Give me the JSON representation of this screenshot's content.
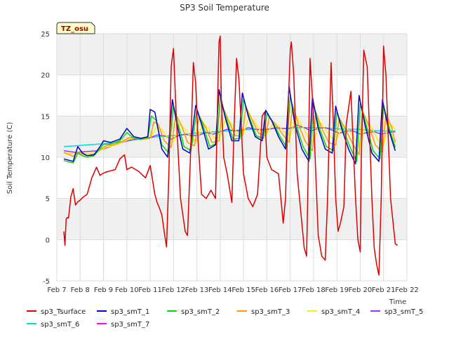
{
  "chart_data": {
    "type": "line",
    "title": "SP3 Soil Temperature",
    "xlabel": "Time",
    "ylabel": "Soil Temperature (C)",
    "badge": "TZ_osu",
    "xlim": [
      7,
      22
    ],
    "ylim": [
      -5,
      25
    ],
    "x_ticks": [
      {
        "value": 7,
        "label": "Feb 7"
      },
      {
        "value": 8,
        "label": "Feb 8"
      },
      {
        "value": 9,
        "label": "Feb 9"
      },
      {
        "value": 10,
        "label": "Feb 10"
      },
      {
        "value": 11,
        "label": "Feb 11"
      },
      {
        "value": 12,
        "label": "Feb 12"
      },
      {
        "value": 13,
        "label": "Feb 13"
      },
      {
        "value": 14,
        "label": "Feb 14"
      },
      {
        "value": 15,
        "label": "Feb 15"
      },
      {
        "value": 16,
        "label": "Feb 16"
      },
      {
        "value": 17,
        "label": "Feb 17"
      },
      {
        "value": 18,
        "label": "Feb 18"
      },
      {
        "value": 19,
        "label": "Feb 19"
      },
      {
        "value": 20,
        "label": "Feb 20"
      },
      {
        "value": 21,
        "label": "Feb 21"
      },
      {
        "value": 22,
        "label": "Feb 22"
      }
    ],
    "y_ticks": [
      -5,
      0,
      5,
      10,
      15,
      20,
      25
    ],
    "grid": true,
    "legend_position": "bottom",
    "series": [
      {
        "name": "sp3_Tsurface",
        "color": "#dd0000",
        "x": [
          7.3,
          7.35,
          7.4,
          7.45,
          7.5,
          7.6,
          7.7,
          7.8,
          7.9,
          8.0,
          8.1,
          8.3,
          8.5,
          8.7,
          8.85,
          8.95,
          9.1,
          9.5,
          9.7,
          9.9,
          10.0,
          10.2,
          10.5,
          10.8,
          11.0,
          11.2,
          11.3,
          11.4,
          11.5,
          11.6,
          11.7,
          11.8,
          11.9,
          12.0,
          12.1,
          12.3,
          12.5,
          12.6,
          12.75,
          12.85,
          12.95,
          13.05,
          13.2,
          13.4,
          13.6,
          13.8,
          13.9,
          13.95,
          14.0,
          14.05,
          14.15,
          14.3,
          14.5,
          14.6,
          14.7,
          14.8,
          14.9,
          15.0,
          15.2,
          15.4,
          15.6,
          15.7,
          15.8,
          15.9,
          16.0,
          16.2,
          16.5,
          16.7,
          16.8,
          16.9,
          17.0,
          17.05,
          17.15,
          17.3,
          17.5,
          17.6,
          17.7,
          17.75,
          17.85,
          18.0,
          18.2,
          18.35,
          18.5,
          18.6,
          18.75,
          18.85,
          18.95,
          19.05,
          19.15,
          19.3,
          19.4,
          19.6,
          19.8,
          19.9,
          20.0,
          20.05,
          20.15,
          20.3,
          20.5,
          20.6,
          20.7,
          20.8,
          20.9,
          21.0,
          21.1,
          21.3,
          21.5,
          21.6
        ],
        "y": [
          1.0,
          -0.7,
          2.5,
          2.7,
          2.6,
          5.2,
          6.2,
          4.2,
          4.6,
          4.8,
          5.1,
          5.5,
          7.5,
          8.8,
          7.8,
          8.0,
          8.2,
          8.5,
          9.8,
          10.3,
          8.5,
          8.8,
          8.3,
          7.5,
          9.0,
          5.5,
          4.5,
          3.8,
          3.0,
          1.0,
          -0.9,
          8.0,
          21.0,
          23.2,
          16.0,
          5.0,
          1.0,
          0.5,
          12.0,
          21.5,
          19.0,
          12.0,
          5.5,
          5.0,
          6.0,
          5.0,
          18.0,
          24.0,
          24.7,
          17.0,
          10.0,
          8.0,
          4.5,
          14.0,
          22.0,
          19.5,
          14.0,
          8.0,
          5.0,
          4.0,
          5.5,
          10.0,
          15.0,
          15.5,
          10.0,
          8.5,
          8.0,
          2.0,
          5.0,
          15.0,
          23.0,
          24.0,
          20.0,
          8.0,
          2.0,
          -1.0,
          -2.0,
          5.0,
          22.0,
          15.0,
          0.5,
          -2.0,
          -2.5,
          5.0,
          21.5,
          14.0,
          5.0,
          1.0,
          2.0,
          4.0,
          14.0,
          18.0,
          5.0,
          0.0,
          -1.5,
          10.0,
          23.0,
          21.0,
          5.0,
          -1.0,
          -3.0,
          -4.3,
          5.0,
          23.5,
          20.0,
          5.0,
          -0.5,
          -0.7
        ]
      },
      {
        "name": "sp3_smT_1",
        "color": "#0000cc",
        "x": [
          7.3,
          7.7,
          7.9,
          8.1,
          8.3,
          8.6,
          8.9,
          9.0,
          9.3,
          9.7,
          10.0,
          10.3,
          10.6,
          10.9,
          11.0,
          11.2,
          11.5,
          11.75,
          11.95,
          12.15,
          12.4,
          12.7,
          12.95,
          13.2,
          13.5,
          13.8,
          13.95,
          14.2,
          14.5,
          14.8,
          14.95,
          15.2,
          15.5,
          15.8,
          15.95,
          16.2,
          16.5,
          16.8,
          16.95,
          17.2,
          17.5,
          17.8,
          17.95,
          18.2,
          18.5,
          18.8,
          18.95,
          19.2,
          19.5,
          19.8,
          19.95,
          20.2,
          20.5,
          20.8,
          20.95,
          21.2,
          21.5
        ],
        "y": [
          9.8,
          9.5,
          11.3,
          10.5,
          10.2,
          10.3,
          11.5,
          12.0,
          11.8,
          12.2,
          13.5,
          12.5,
          12.3,
          12.5,
          15.8,
          15.5,
          11.0,
          10.0,
          17.0,
          14.0,
          11.0,
          10.5,
          16.3,
          14.0,
          11.0,
          11.5,
          18.2,
          15.0,
          12.0,
          12.0,
          17.8,
          15.0,
          12.5,
          12.0,
          15.7,
          14.5,
          12.5,
          11.0,
          18.6,
          14.0,
          11.0,
          9.5,
          17.3,
          13.5,
          11.0,
          10.5,
          16.2,
          13.5,
          11.0,
          9.2,
          17.5,
          14.0,
          10.5,
          9.5,
          17.0,
          13.5,
          10.8
        ]
      },
      {
        "name": "sp3_smT_2",
        "color": "#00dd00",
        "x": [
          7.3,
          7.7,
          7.9,
          8.1,
          8.3,
          8.6,
          8.9,
          9.0,
          9.3,
          9.7,
          10.0,
          10.3,
          10.6,
          10.9,
          11.05,
          11.25,
          11.5,
          11.8,
          12.0,
          12.2,
          12.45,
          12.75,
          13.0,
          13.25,
          13.55,
          13.85,
          14.0,
          14.25,
          14.55,
          14.85,
          15.0,
          15.25,
          15.55,
          15.85,
          16.0,
          16.25,
          16.55,
          16.85,
          17.0,
          17.25,
          17.55,
          17.85,
          18.0,
          18.25,
          18.55,
          18.85,
          19.0,
          19.25,
          19.55,
          19.85,
          20.0,
          20.25,
          20.55,
          20.85,
          21.0,
          21.25,
          21.5
        ],
        "y": [
          9.6,
          9.3,
          10.5,
          10.2,
          10.0,
          10.2,
          11.2,
          11.6,
          11.6,
          12.0,
          13.0,
          12.3,
          12.2,
          12.4,
          15.0,
          14.5,
          11.5,
          10.5,
          16.3,
          14.0,
          11.3,
          10.8,
          15.8,
          14.0,
          11.3,
          11.7,
          17.2,
          14.8,
          12.2,
          12.3,
          17.0,
          14.8,
          12.6,
          12.3,
          15.3,
          14.3,
          12.6,
          11.2,
          17.5,
          14.0,
          11.3,
          9.8,
          16.5,
          13.5,
          11.3,
          10.8,
          15.5,
          13.5,
          11.3,
          9.5,
          16.5,
          14.0,
          10.8,
          9.8,
          16.3,
          13.5,
          11.2
        ]
      },
      {
        "name": "sp3_smT_3",
        "color": "#ff9900",
        "x": [
          7.3,
          7.7,
          7.9,
          8.1,
          8.3,
          8.6,
          8.9,
          9.1,
          9.4,
          9.8,
          10.1,
          10.4,
          10.7,
          11.0,
          11.15,
          11.35,
          11.6,
          11.9,
          12.1,
          12.35,
          12.6,
          12.9,
          13.1,
          13.35,
          13.65,
          13.95,
          14.1,
          14.35,
          14.65,
          14.95,
          15.1,
          15.35,
          15.65,
          15.95,
          16.1,
          16.35,
          16.65,
          16.95,
          17.1,
          17.35,
          17.65,
          17.95,
          18.1,
          18.35,
          18.65,
          18.95,
          19.1,
          19.35,
          19.65,
          19.95,
          20.1,
          20.35,
          20.65,
          20.95,
          21.1,
          21.35,
          21.5
        ],
        "y": [
          10.6,
          10.1,
          10.6,
          10.4,
          10.2,
          10.4,
          11.0,
          11.4,
          11.5,
          11.9,
          12.4,
          12.3,
          12.2,
          12.3,
          14.3,
          14.0,
          12.0,
          11.2,
          15.2,
          13.8,
          11.8,
          11.4,
          15.0,
          13.8,
          11.8,
          12.0,
          16.2,
          14.5,
          12.6,
          12.6,
          16.2,
          14.6,
          12.9,
          12.6,
          14.8,
          14.1,
          12.9,
          11.8,
          16.4,
          14.0,
          11.9,
          10.8,
          15.5,
          13.5,
          11.8,
          11.5,
          14.8,
          13.5,
          11.8,
          10.3,
          15.6,
          14.0,
          11.5,
          10.6,
          15.3,
          13.6,
          11.8
        ]
      },
      {
        "name": "sp3_smT_4",
        "color": "#ffee00",
        "x": [
          7.3,
          7.7,
          7.9,
          8.1,
          8.3,
          8.6,
          8.9,
          9.1,
          9.4,
          9.8,
          10.1,
          10.4,
          10.7,
          11.0,
          11.25,
          11.5,
          11.75,
          12.0,
          12.25,
          12.5,
          12.75,
          13.0,
          13.25,
          13.5,
          13.75,
          14.0,
          14.25,
          14.5,
          14.75,
          15.0,
          15.25,
          15.5,
          15.75,
          16.0,
          16.25,
          16.5,
          16.75,
          17.0,
          17.25,
          17.5,
          17.75,
          18.0,
          18.25,
          18.5,
          18.75,
          19.0,
          19.25,
          19.5,
          19.75,
          20.0,
          20.25,
          20.5,
          20.75,
          21.0,
          21.25,
          21.5
        ],
        "y": [
          10.5,
          10.4,
          10.6,
          10.5,
          10.4,
          10.5,
          10.9,
          11.2,
          11.4,
          11.8,
          12.2,
          12.3,
          12.2,
          12.3,
          13.6,
          13.4,
          12.3,
          11.9,
          14.0,
          13.4,
          12.3,
          12.0,
          14.0,
          13.5,
          12.3,
          12.5,
          14.8,
          14.0,
          12.9,
          12.9,
          15.0,
          14.2,
          13.1,
          12.9,
          14.0,
          13.8,
          13.1,
          12.6,
          15.0,
          13.9,
          12.5,
          11.8,
          14.3,
          13.4,
          12.4,
          12.2,
          13.9,
          13.3,
          12.4,
          11.4,
          14.4,
          13.6,
          12.1,
          11.6,
          14.2,
          13.4
        ]
      },
      {
        "name": "sp3_smT_5",
        "color": "#9933ff",
        "x": [
          7.3,
          7.8,
          8.3,
          8.8,
          9.3,
          9.8,
          10.3,
          10.8,
          11.0,
          11.3,
          11.6,
          11.9,
          12.2,
          12.5,
          12.8,
          13.1,
          13.4,
          13.7,
          14.0,
          14.3,
          14.6,
          14.9,
          15.2,
          15.5,
          15.8,
          16.1,
          16.4,
          16.7,
          17.0,
          17.3,
          17.6,
          17.9,
          18.2,
          18.5,
          18.8,
          19.1,
          19.4,
          19.7,
          20.0,
          20.3,
          20.6,
          20.9,
          21.2,
          21.5
        ],
        "y": [
          10.8,
          10.6,
          10.7,
          10.8,
          11.3,
          11.8,
          12.2,
          12.3,
          12.4,
          12.7,
          12.6,
          12.2,
          12.6,
          12.8,
          12.6,
          12.7,
          13.0,
          12.8,
          13.1,
          13.4,
          13.2,
          13.2,
          13.6,
          13.4,
          13.3,
          13.4,
          13.6,
          13.5,
          13.5,
          13.9,
          13.6,
          13.2,
          13.5,
          13.6,
          13.3,
          12.9,
          13.2,
          13.2,
          12.8,
          13.0,
          13.1,
          12.8,
          13.0,
          13.1
        ]
      },
      {
        "name": "sp3_smT_6",
        "color": "#00dddd",
        "x": [
          7.3,
          7.8,
          8.3,
          8.8,
          9.3,
          9.8,
          10.3,
          10.8,
          11.3,
          11.8,
          12.3,
          12.8,
          13.3,
          13.8,
          14.3,
          14.8,
          15.3,
          15.8,
          16.3,
          16.8,
          17.3,
          17.8,
          18.3,
          18.8,
          19.3,
          19.8,
          20.3,
          20.8,
          21.3,
          21.5
        ],
        "y": [
          11.3,
          11.4,
          11.5,
          11.6,
          11.7,
          11.9,
          12.1,
          12.3,
          12.5,
          12.6,
          12.7,
          12.9,
          13.0,
          13.1,
          13.2,
          13.3,
          13.4,
          13.4,
          13.5,
          13.5,
          13.6,
          13.6,
          13.6,
          13.5,
          13.4,
          13.4,
          13.3,
          13.2,
          13.2,
          13.2
        ]
      },
      {
        "name": "sp3_smT_7",
        "color": "#ff00ff",
        "x": [
          7.3,
          8.0,
          9.0,
          10.0,
          10.5,
          11.0,
          11.5,
          12.0,
          12.5,
          13.0,
          13.5,
          14.0,
          14.5,
          15.0,
          15.5,
          16.0,
          16.5,
          17.0,
          17.5,
          18.0,
          18.5,
          19.0,
          19.5,
          20.0,
          20.5,
          21.0,
          21.5
        ],
        "y": [
          12.5,
          12.6,
          12.6,
          12.7,
          12.8,
          12.9,
          13.0,
          13.1,
          13.2,
          13.3,
          13.4,
          13.5,
          13.6,
          13.7,
          13.8,
          13.9,
          14.0,
          14.1,
          14.2,
          14.2,
          14.3,
          14.3,
          14.3,
          14.3,
          14.2,
          14.2,
          14.2
        ]
      }
    ]
  }
}
